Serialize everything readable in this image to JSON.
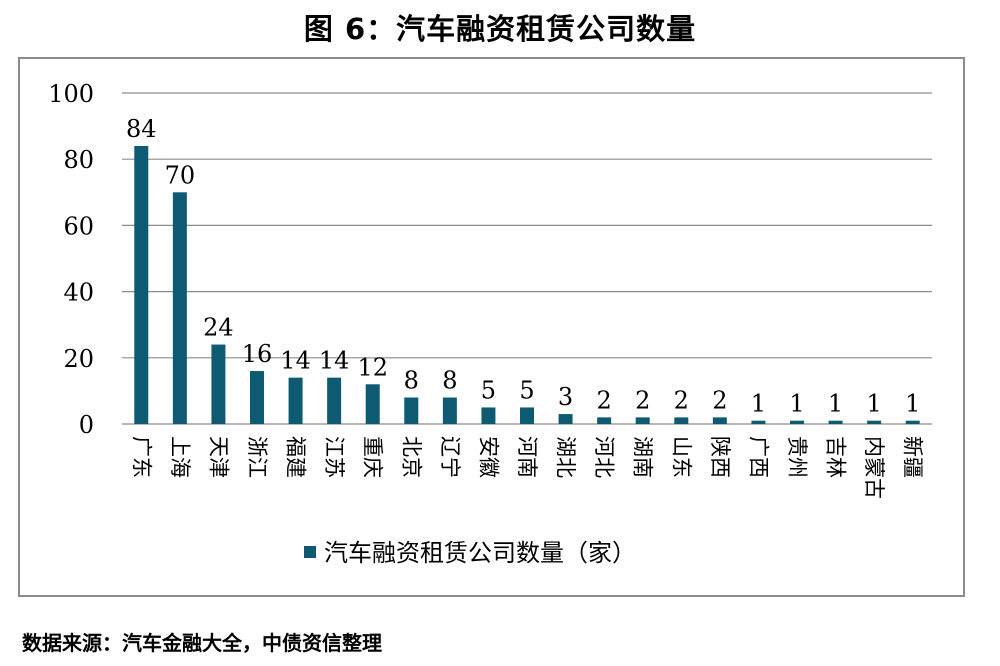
{
  "figure": {
    "title": "图 6：汽车融资租赁公司数量",
    "source": "数据来源：汽车金融大全，中债资信整理"
  },
  "chart_data": {
    "type": "bar",
    "categories": [
      "广东",
      "上海",
      "天津",
      "浙江",
      "福建",
      "江苏",
      "重庆",
      "北京",
      "辽宁",
      "安徽",
      "河南",
      "湖北",
      "河北",
      "湖南",
      "山东",
      "陕西",
      "广西",
      "贵州",
      "吉林",
      "内蒙古",
      "新疆"
    ],
    "series": [
      {
        "name": "汽车融资租赁公司数量（家）",
        "values": [
          84,
          70,
          24,
          16,
          14,
          14,
          12,
          8,
          8,
          5,
          5,
          3,
          2,
          2,
          2,
          2,
          1,
          1,
          1,
          1,
          1
        ]
      }
    ],
    "ylim": [
      0,
      100
    ],
    "yticks": [
      0,
      20,
      40,
      60,
      80,
      100
    ],
    "grid": true,
    "legend_position": "bottom",
    "colors": {
      "bar": "#0e5a73",
      "grid": "#8c8c8c"
    }
  }
}
